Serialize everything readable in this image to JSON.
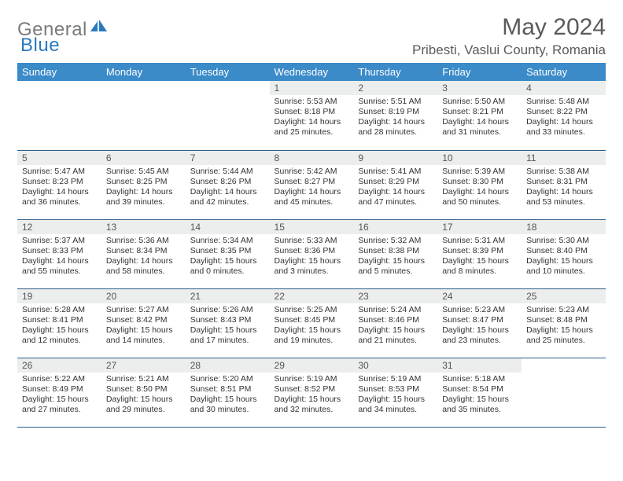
{
  "logo": {
    "text1": "General",
    "text2": "Blue"
  },
  "title": "May 2024",
  "location": "Pribesti, Vaslui County, Romania",
  "colors": {
    "header_bg": "#3b8bc9",
    "header_text": "#ffffff",
    "daynum_bg": "#eceded",
    "border": "#2f5f86",
    "logo_gray": "#7a7a7a",
    "logo_blue": "#2a7ac0",
    "title_color": "#5a5a5a"
  },
  "weekdays": [
    "Sunday",
    "Monday",
    "Tuesday",
    "Wednesday",
    "Thursday",
    "Friday",
    "Saturday"
  ],
  "weeks": [
    [
      {
        "n": "",
        "sr": "",
        "ss": "",
        "dl": "",
        "empty": true
      },
      {
        "n": "",
        "sr": "",
        "ss": "",
        "dl": "",
        "empty": true
      },
      {
        "n": "",
        "sr": "",
        "ss": "",
        "dl": "",
        "empty": true
      },
      {
        "n": "1",
        "sr": "5:53 AM",
        "ss": "8:18 PM",
        "dl": "14 hours and 25 minutes."
      },
      {
        "n": "2",
        "sr": "5:51 AM",
        "ss": "8:19 PM",
        "dl": "14 hours and 28 minutes."
      },
      {
        "n": "3",
        "sr": "5:50 AM",
        "ss": "8:21 PM",
        "dl": "14 hours and 31 minutes."
      },
      {
        "n": "4",
        "sr": "5:48 AM",
        "ss": "8:22 PM",
        "dl": "14 hours and 33 minutes."
      }
    ],
    [
      {
        "n": "5",
        "sr": "5:47 AM",
        "ss": "8:23 PM",
        "dl": "14 hours and 36 minutes."
      },
      {
        "n": "6",
        "sr": "5:45 AM",
        "ss": "8:25 PM",
        "dl": "14 hours and 39 minutes."
      },
      {
        "n": "7",
        "sr": "5:44 AM",
        "ss": "8:26 PM",
        "dl": "14 hours and 42 minutes."
      },
      {
        "n": "8",
        "sr": "5:42 AM",
        "ss": "8:27 PM",
        "dl": "14 hours and 45 minutes."
      },
      {
        "n": "9",
        "sr": "5:41 AM",
        "ss": "8:29 PM",
        "dl": "14 hours and 47 minutes."
      },
      {
        "n": "10",
        "sr": "5:39 AM",
        "ss": "8:30 PM",
        "dl": "14 hours and 50 minutes."
      },
      {
        "n": "11",
        "sr": "5:38 AM",
        "ss": "8:31 PM",
        "dl": "14 hours and 53 minutes."
      }
    ],
    [
      {
        "n": "12",
        "sr": "5:37 AM",
        "ss": "8:33 PM",
        "dl": "14 hours and 55 minutes."
      },
      {
        "n": "13",
        "sr": "5:36 AM",
        "ss": "8:34 PM",
        "dl": "14 hours and 58 minutes."
      },
      {
        "n": "14",
        "sr": "5:34 AM",
        "ss": "8:35 PM",
        "dl": "15 hours and 0 minutes."
      },
      {
        "n": "15",
        "sr": "5:33 AM",
        "ss": "8:36 PM",
        "dl": "15 hours and 3 minutes."
      },
      {
        "n": "16",
        "sr": "5:32 AM",
        "ss": "8:38 PM",
        "dl": "15 hours and 5 minutes."
      },
      {
        "n": "17",
        "sr": "5:31 AM",
        "ss": "8:39 PM",
        "dl": "15 hours and 8 minutes."
      },
      {
        "n": "18",
        "sr": "5:30 AM",
        "ss": "8:40 PM",
        "dl": "15 hours and 10 minutes."
      }
    ],
    [
      {
        "n": "19",
        "sr": "5:28 AM",
        "ss": "8:41 PM",
        "dl": "15 hours and 12 minutes."
      },
      {
        "n": "20",
        "sr": "5:27 AM",
        "ss": "8:42 PM",
        "dl": "15 hours and 14 minutes."
      },
      {
        "n": "21",
        "sr": "5:26 AM",
        "ss": "8:43 PM",
        "dl": "15 hours and 17 minutes."
      },
      {
        "n": "22",
        "sr": "5:25 AM",
        "ss": "8:45 PM",
        "dl": "15 hours and 19 minutes."
      },
      {
        "n": "23",
        "sr": "5:24 AM",
        "ss": "8:46 PM",
        "dl": "15 hours and 21 minutes."
      },
      {
        "n": "24",
        "sr": "5:23 AM",
        "ss": "8:47 PM",
        "dl": "15 hours and 23 minutes."
      },
      {
        "n": "25",
        "sr": "5:23 AM",
        "ss": "8:48 PM",
        "dl": "15 hours and 25 minutes."
      }
    ],
    [
      {
        "n": "26",
        "sr": "5:22 AM",
        "ss": "8:49 PM",
        "dl": "15 hours and 27 minutes."
      },
      {
        "n": "27",
        "sr": "5:21 AM",
        "ss": "8:50 PM",
        "dl": "15 hours and 29 minutes."
      },
      {
        "n": "28",
        "sr": "5:20 AM",
        "ss": "8:51 PM",
        "dl": "15 hours and 30 minutes."
      },
      {
        "n": "29",
        "sr": "5:19 AM",
        "ss": "8:52 PM",
        "dl": "15 hours and 32 minutes."
      },
      {
        "n": "30",
        "sr": "5:19 AM",
        "ss": "8:53 PM",
        "dl": "15 hours and 34 minutes."
      },
      {
        "n": "31",
        "sr": "5:18 AM",
        "ss": "8:54 PM",
        "dl": "15 hours and 35 minutes."
      },
      {
        "n": "",
        "sr": "",
        "ss": "",
        "dl": "",
        "empty": true
      }
    ]
  ],
  "labels": {
    "sunrise": "Sunrise:",
    "sunset": "Sunset:",
    "daylight": "Daylight:"
  }
}
